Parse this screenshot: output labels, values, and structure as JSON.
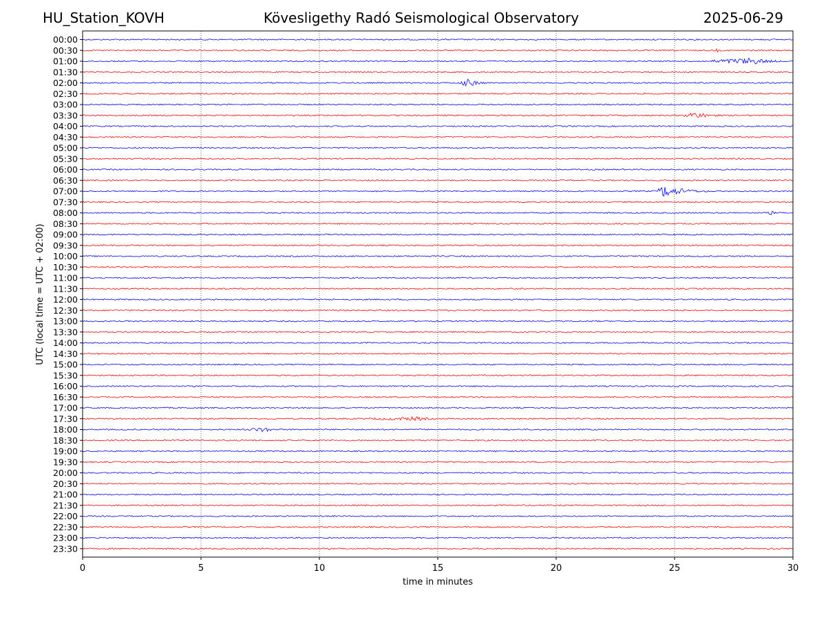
{
  "header": {
    "station": "HU_Station_KOVH",
    "title": "Kövesligethy Radó Seismological Observatory",
    "date": "2025-06-29"
  },
  "colors": {
    "even_trace": "#0000ff",
    "odd_trace": "#ff0000"
  },
  "chart_data": {
    "type": "line",
    "xlabel": "time in minutes",
    "ylabel": "UTC (local time = UTC + 02:00)",
    "xlim": [
      0,
      30
    ],
    "xticks": [
      0,
      5,
      10,
      15,
      20,
      25,
      30
    ],
    "grid": "vertical dotted lines at 5, 10, 15, 20, 25",
    "rows": [
      "00:00",
      "00:30",
      "01:00",
      "01:30",
      "02:00",
      "02:30",
      "03:00",
      "03:30",
      "04:00",
      "04:30",
      "05:00",
      "05:30",
      "06:00",
      "06:30",
      "07:00",
      "07:30",
      "08:00",
      "08:30",
      "09:00",
      "09:30",
      "10:00",
      "10:30",
      "11:00",
      "11:30",
      "12:00",
      "12:30",
      "13:00",
      "13:30",
      "14:00",
      "14:30",
      "15:00",
      "15:30",
      "16:00",
      "16:30",
      "17:00",
      "17:30",
      "18:00",
      "18:30",
      "19:00",
      "19:30",
      "20:00",
      "20:30",
      "21:00",
      "21:30",
      "22:00",
      "22:30",
      "23:00",
      "23:30"
    ],
    "events": [
      {
        "row": "01:00",
        "start": 26.5,
        "peak": 28.3,
        "end": 30,
        "amp": 5
      },
      {
        "row": "02:00",
        "start": 15.9,
        "peak": 16.3,
        "end": 17.3,
        "amp": 6
      },
      {
        "row": "03:30",
        "start": 25.4,
        "peak": 25.8,
        "end": 27.5,
        "amp": 5
      },
      {
        "row": "07:00",
        "start": 24.3,
        "peak": 24.5,
        "end": 26.5,
        "amp": 9
      },
      {
        "row": "08:00",
        "start": 28.9,
        "peak": 29.1,
        "end": 29.5,
        "amp": 3
      },
      {
        "row": "17:30",
        "start": 12.0,
        "peak": 14.2,
        "end": 15.5,
        "amp": 3
      },
      {
        "row": "18:00",
        "start": 7.0,
        "peak": 7.8,
        "end": 8.2,
        "amp": 4
      },
      {
        "row": "14:00",
        "start": 23.5,
        "peak": 23.7,
        "end": 24.0,
        "amp": 3
      },
      {
        "row": "00:30",
        "start": 26.7,
        "peak": 26.8,
        "end": 27.0,
        "amp": 3
      }
    ]
  }
}
